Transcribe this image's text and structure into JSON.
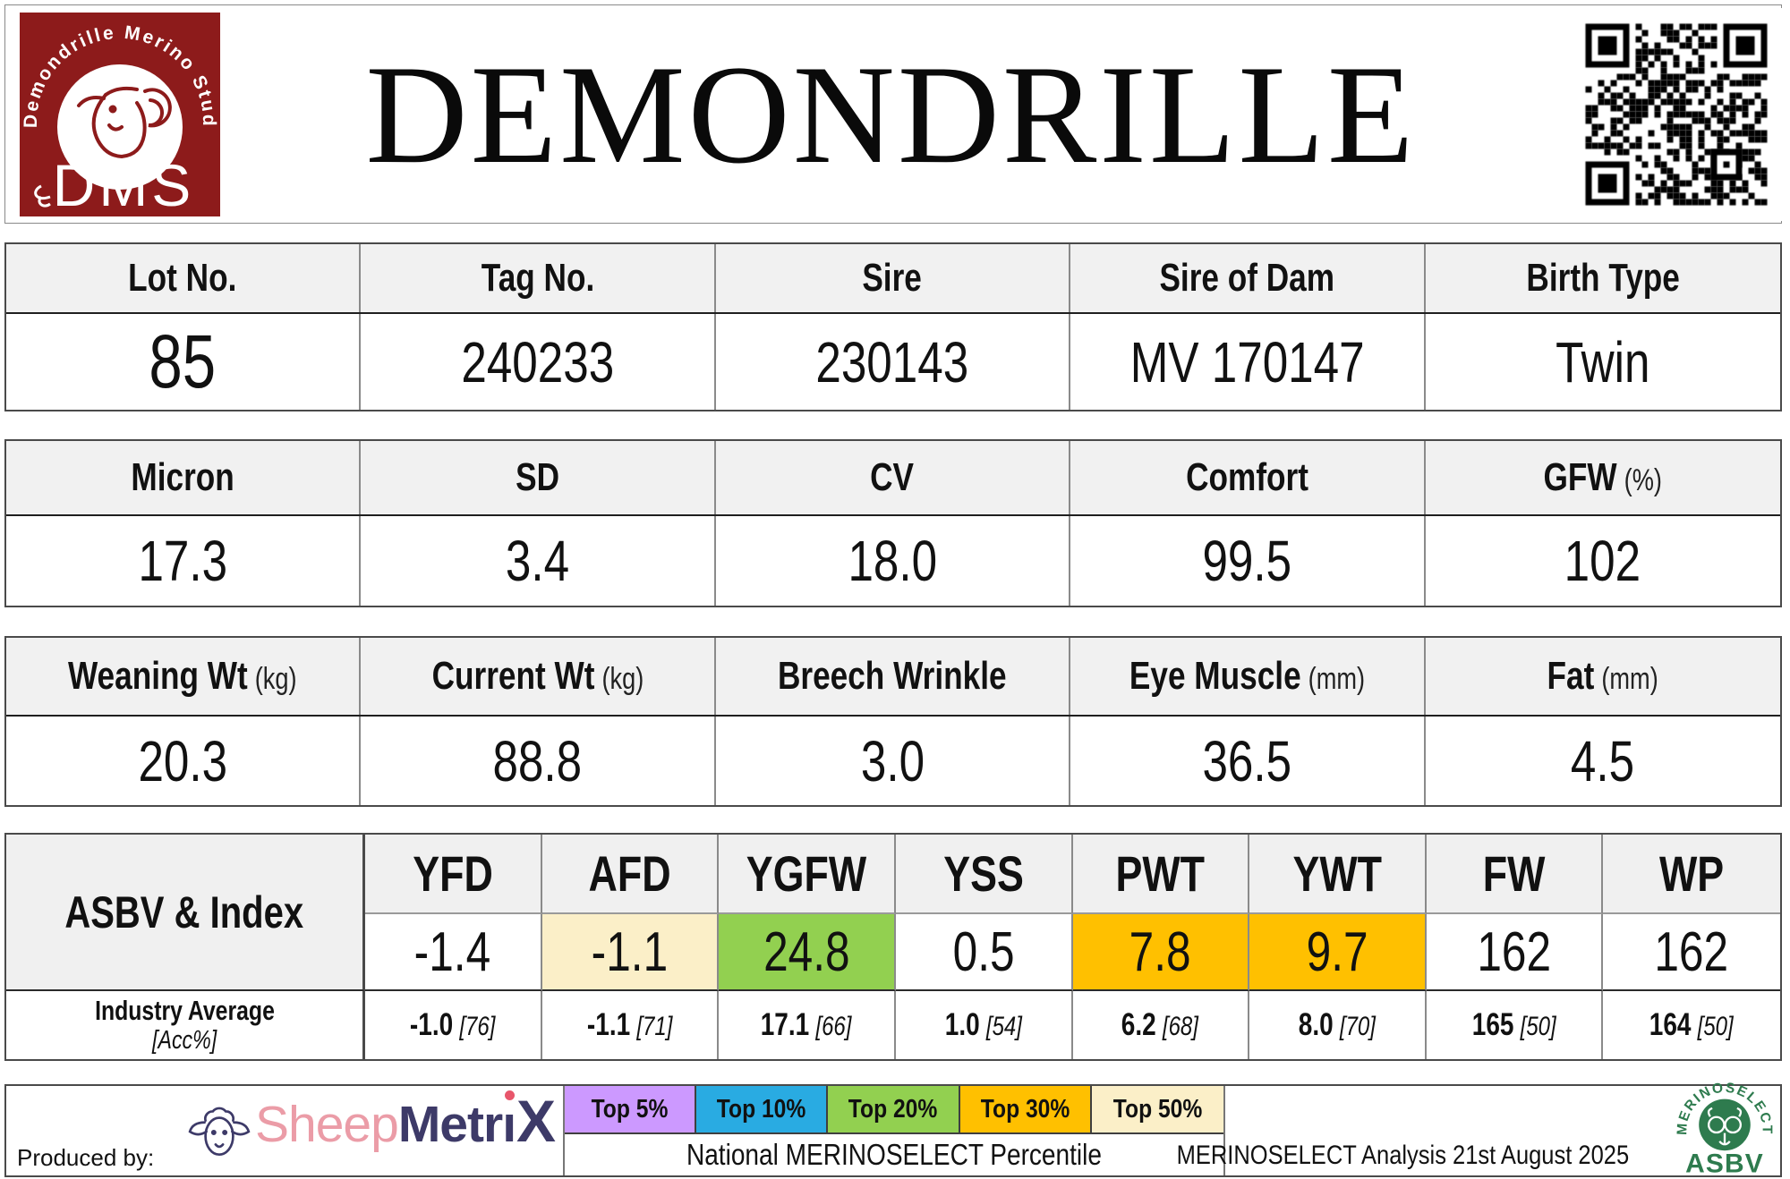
{
  "colors": {
    "top5": "#CC99FF",
    "top10": "#29ABE2",
    "top20": "#92D050",
    "top30": "#FFC000",
    "top50": "#FBEFC8",
    "header_bg": "#F0F0F0",
    "logo_red": "#8D1B1B",
    "ms_green": "#2E7B4E"
  },
  "header": {
    "title": "DEMONDRILLE",
    "stud_logo": {
      "arc_text": "Demondrille Merino Stud",
      "initials": "DMS"
    }
  },
  "info_table": {
    "labels": [
      "Lot No.",
      "Tag No.",
      "Sire",
      "Sire of Dam",
      "Birth Type"
    ],
    "units": [
      "",
      "",
      "",
      "",
      ""
    ],
    "values": [
      "85",
      "240233",
      "230143",
      "MV 170147",
      "Twin"
    ]
  },
  "wool_table": {
    "labels": [
      "Micron",
      "SD",
      "CV",
      "Comfort",
      "GFW"
    ],
    "units": [
      "",
      "",
      "",
      "",
      "(%)"
    ],
    "values": [
      "17.3",
      "3.4",
      "18.0",
      "99.5",
      "102"
    ]
  },
  "body_table": {
    "labels": [
      "Weaning Wt",
      "Current Wt",
      "Breech Wrinkle",
      "Eye Muscle",
      "Fat"
    ],
    "units": [
      "(kg)",
      "(kg)",
      "",
      "(mm)",
      "(mm)"
    ],
    "values": [
      "20.3",
      "88.8",
      "3.0",
      "36.5",
      "4.5"
    ]
  },
  "asbv_table": {
    "row_header": "ASBV & Index",
    "industry_label": "Industry Average",
    "industry_sublabel": "[Acc%]",
    "columns": [
      {
        "trait": "YFD",
        "value": "-1.4",
        "highlight": "none",
        "industry": "-1.0",
        "acc": "[76]"
      },
      {
        "trait": "AFD",
        "value": "-1.1",
        "highlight": "top50",
        "industry": "-1.1",
        "acc": "[71]"
      },
      {
        "trait": "YGFW",
        "value": "24.8",
        "highlight": "top20",
        "industry": "17.1",
        "acc": "[66]"
      },
      {
        "trait": "YSS",
        "value": "0.5",
        "highlight": "none",
        "industry": "1.0",
        "acc": "[54]"
      },
      {
        "trait": "PWT",
        "value": "7.8",
        "highlight": "top30",
        "industry": "6.2",
        "acc": "[68]"
      },
      {
        "trait": "YWT",
        "value": "9.7",
        "highlight": "top30",
        "industry": "8.0",
        "acc": "[70]"
      },
      {
        "trait": "FW",
        "value": "162",
        "highlight": "none",
        "industry": "165",
        "acc": "[50]"
      },
      {
        "trait": "WP",
        "value": "162",
        "highlight": "none",
        "industry": "164",
        "acc": "[50]"
      }
    ]
  },
  "footer": {
    "produced_by": "Produced by:",
    "sheepmetrix": {
      "sheep": "Sheep",
      "metr": "Metr",
      "i": "ı",
      "x": "X"
    },
    "legend": [
      {
        "label": "Top 5%",
        "color": "#CC99FF"
      },
      {
        "label": "Top 10%",
        "color": "#29ABE2"
      },
      {
        "label": "Top 20%",
        "color": "#92D050"
      },
      {
        "label": "Top 30%",
        "color": "#FFC000"
      },
      {
        "label": "Top 50%",
        "color": "#FBEFC8"
      }
    ],
    "legend_caption": "National MERINOSELECT Percentile",
    "analysis_note": "MERINOSELECT Analysis 21st August 2025",
    "asbv_logo": {
      "arc_text": "MERINOSELECT",
      "label": "ASBV"
    }
  }
}
